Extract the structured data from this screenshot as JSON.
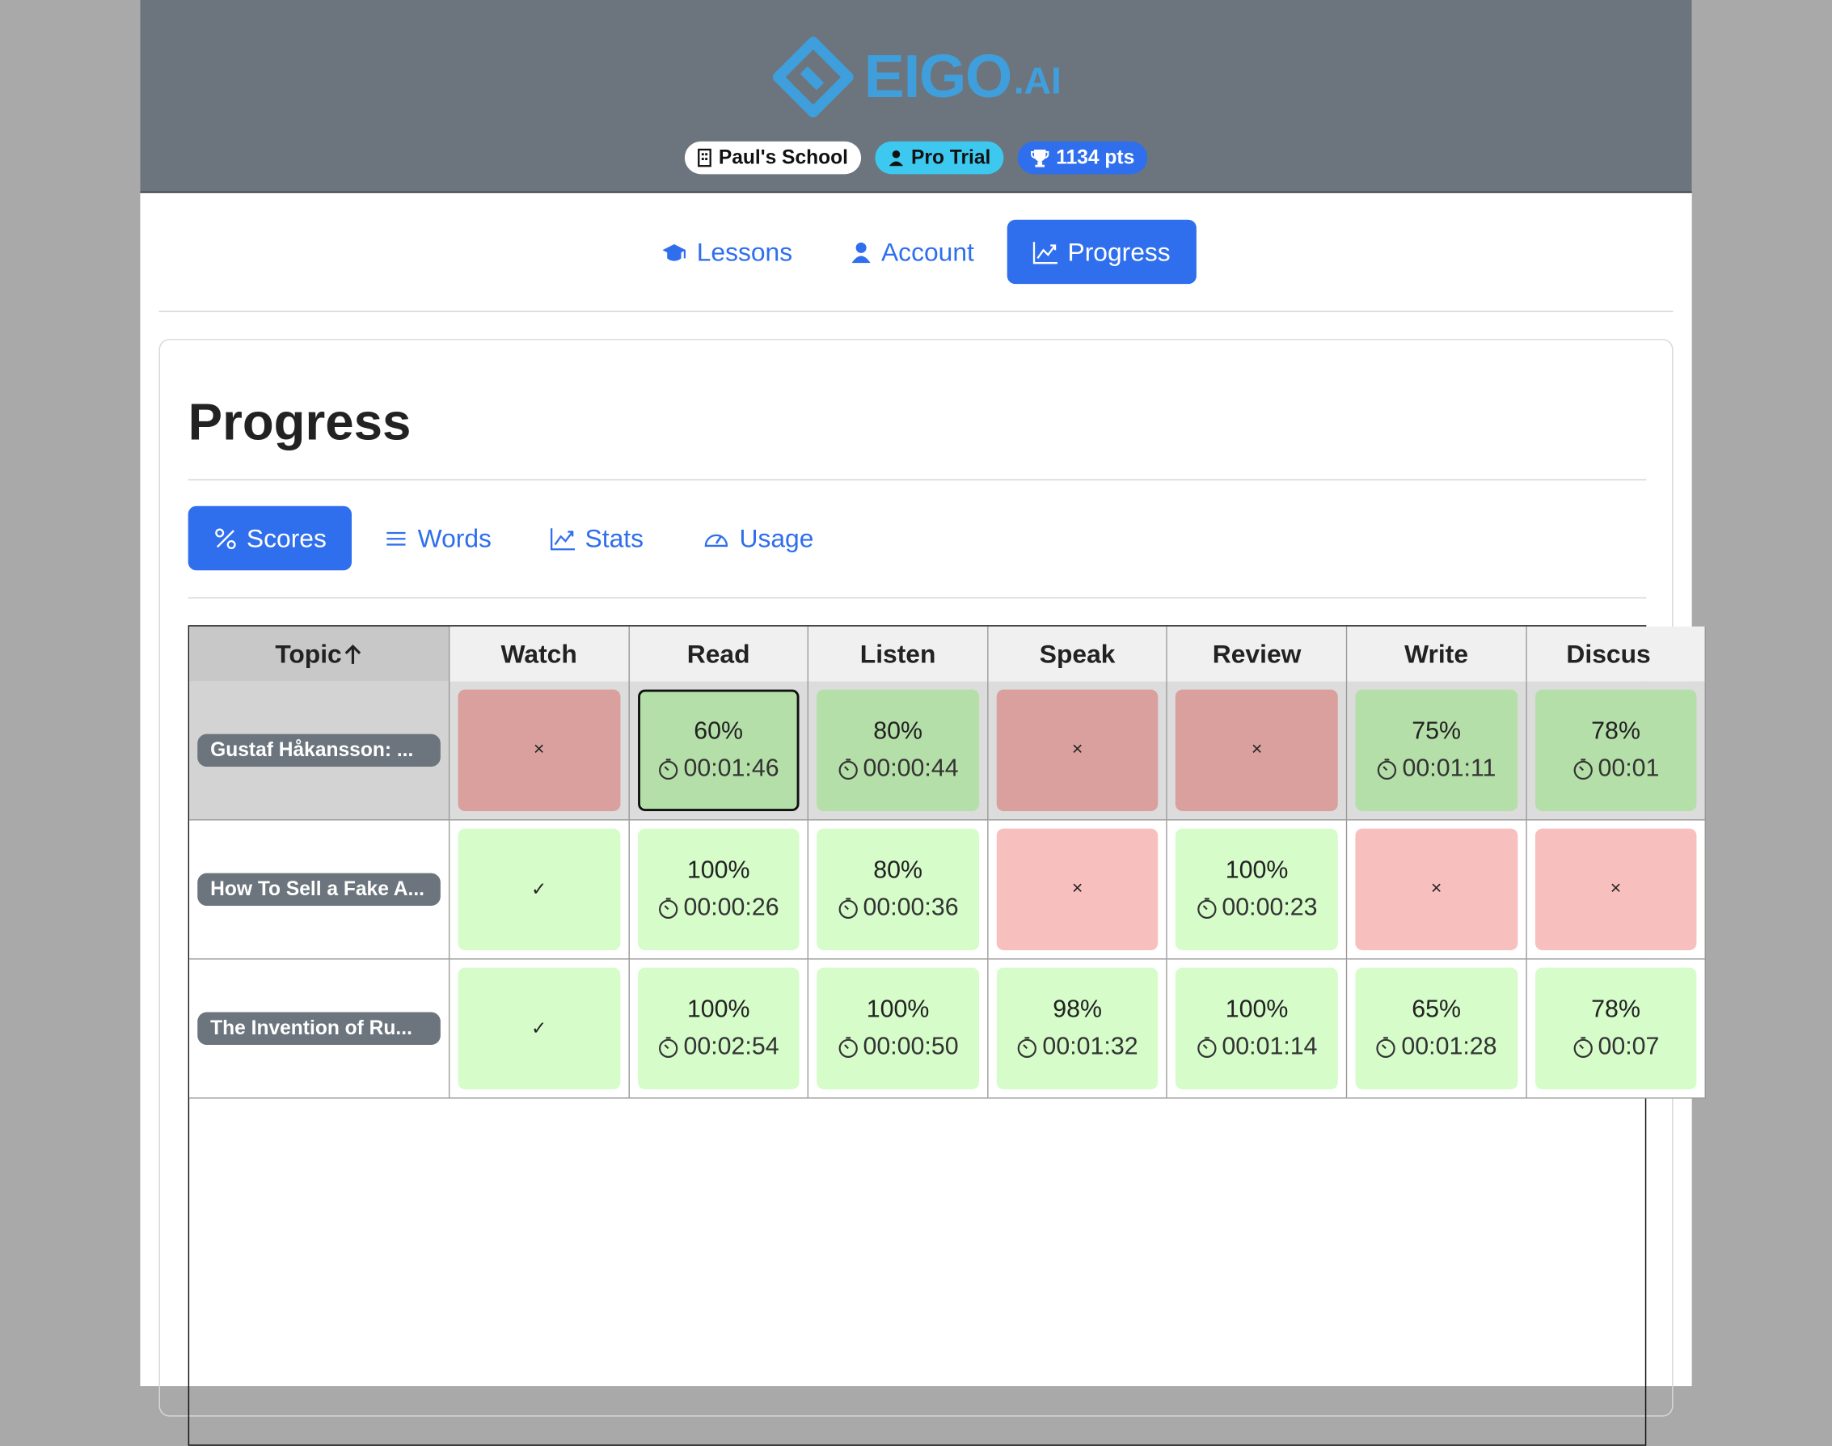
{
  "header": {
    "logo": {
      "name": "EIGO",
      "suffix": ".AI"
    },
    "badges": [
      "Paul's School",
      "Pro Trial",
      "1134 pts"
    ]
  },
  "nav": {
    "items": [
      "Lessons",
      "Account",
      "Progress"
    ],
    "active": 2
  },
  "page": {
    "title": "Progress",
    "tabs": {
      "items": [
        "Scores",
        "Words",
        "Stats",
        "Usage"
      ],
      "active": 0
    }
  },
  "table": {
    "columns": [
      "Topic",
      "Watch",
      "Read",
      "Listen",
      "Speak",
      "Review",
      "Write",
      "Discus"
    ],
    "rows": [
      {
        "topic": "Gustaf Håkansson: ...",
        "selected": true,
        "cells": [
          {
            "status": "fail",
            "mark": "×"
          },
          {
            "status": "score",
            "score": "60%",
            "time": "00:01:46",
            "focused": true
          },
          {
            "status": "score",
            "score": "80%",
            "time": "00:00:44"
          },
          {
            "status": "fail",
            "mark": "×"
          },
          {
            "status": "fail",
            "mark": "×"
          },
          {
            "status": "score",
            "score": "75%",
            "time": "00:01:11"
          },
          {
            "status": "score",
            "score": "78%",
            "time": "00:01"
          }
        ]
      },
      {
        "topic": "How To Sell a Fake A...",
        "cells": [
          {
            "status": "done",
            "mark": "✓"
          },
          {
            "status": "score",
            "score": "100%",
            "time": "00:00:26"
          },
          {
            "status": "score",
            "score": "80%",
            "time": "00:00:36"
          },
          {
            "status": "fail",
            "mark": "×"
          },
          {
            "status": "score",
            "score": "100%",
            "time": "00:00:23"
          },
          {
            "status": "fail",
            "mark": "×"
          },
          {
            "status": "fail",
            "mark": "×"
          }
        ]
      },
      {
        "topic": "The Invention of Ru...",
        "cells": [
          {
            "status": "done",
            "mark": "✓"
          },
          {
            "status": "score",
            "score": "100%",
            "time": "00:02:54"
          },
          {
            "status": "score",
            "score": "100%",
            "time": "00:00:50"
          },
          {
            "status": "score",
            "score": "98%",
            "time": "00:01:32"
          },
          {
            "status": "score",
            "score": "100%",
            "time": "00:01:14"
          },
          {
            "status": "score",
            "score": "65%",
            "time": "00:01:28"
          },
          {
            "status": "score",
            "score": "78%",
            "time": "00:07"
          }
        ]
      }
    ]
  }
}
